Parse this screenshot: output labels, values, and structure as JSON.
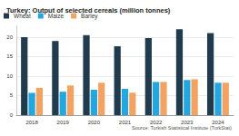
{
  "chart_data": {
    "type": "bar",
    "title": "Turkey: Output of selected cereals (million tonnes)",
    "source": "Source: Turkish Statistical Institute (TurkStat)",
    "categories": [
      "2018",
      "2019",
      "2020",
      "2021",
      "2022",
      "2023",
      "2024"
    ],
    "series": [
      {
        "name": "Wheat",
        "color": "#1f3b4d",
        "values": [
          20.0,
          19.0,
          20.5,
          17.65,
          19.75,
          22.0,
          21.0
        ]
      },
      {
        "name": "Maize",
        "color": "#22a7df",
        "values": [
          5.7,
          6.0,
          6.5,
          6.75,
          8.5,
          9.0,
          8.3
        ]
      },
      {
        "name": "Barley",
        "color": "#f4a261",
        "values": [
          7.0,
          7.6,
          8.3,
          5.75,
          8.5,
          9.2,
          8.3
        ]
      }
    ],
    "ylim": [
      0,
      23
    ],
    "yticks": [
      0,
      5,
      10,
      15,
      20
    ],
    "grid": true,
    "legend": "top-left"
  }
}
